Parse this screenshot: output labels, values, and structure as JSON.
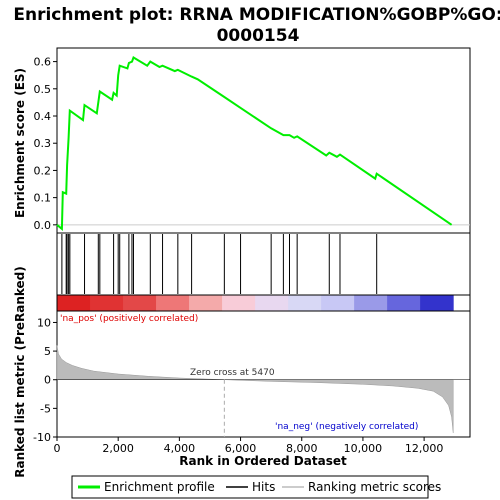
{
  "chart_data": {
    "type": "line",
    "title_line1": "Enrichment plot: RRNA MODIFICATION%GOBP%GO:",
    "title_line2": "0000154",
    "top_panel": {
      "ylabel": "Enrichment score (ES)",
      "ylim": [
        -0.03,
        0.65
      ],
      "yticks": [
        "0.0",
        "0.1",
        "0.2",
        "0.3",
        "0.4",
        "0.5",
        "0.6"
      ],
      "ytick_values": [
        0.0,
        0.1,
        0.2,
        0.3,
        0.4,
        0.5,
        0.6
      ],
      "line_color": "#00ee00",
      "es_profile": [
        [
          0,
          0.0
        ],
        [
          160,
          -0.015
        ],
        [
          190,
          0.12
        ],
        [
          300,
          0.115
        ],
        [
          330,
          0.22
        ],
        [
          380,
          0.32
        ],
        [
          420,
          0.42
        ],
        [
          850,
          0.385
        ],
        [
          900,
          0.44
        ],
        [
          1300,
          0.41
        ],
        [
          1350,
          0.45
        ],
        [
          1400,
          0.49
        ],
        [
          1800,
          0.46
        ],
        [
          1850,
          0.485
        ],
        [
          1950,
          0.475
        ],
        [
          2000,
          0.55
        ],
        [
          2050,
          0.585
        ],
        [
          2300,
          0.575
        ],
        [
          2350,
          0.595
        ],
        [
          2450,
          0.6
        ],
        [
          2500,
          0.615
        ],
        [
          2950,
          0.585
        ],
        [
          3050,
          0.6
        ],
        [
          3350,
          0.58
        ],
        [
          3450,
          0.585
        ],
        [
          3850,
          0.565
        ],
        [
          3950,
          0.57
        ],
        [
          4400,
          0.545
        ],
        [
          4600,
          0.535
        ],
        [
          5470,
          0.47
        ],
        [
          6000,
          0.43
        ],
        [
          7000,
          0.355
        ],
        [
          7400,
          0.33
        ],
        [
          7600,
          0.33
        ],
        [
          7750,
          0.32
        ],
        [
          7850,
          0.325
        ],
        [
          8800,
          0.255
        ],
        [
          8900,
          0.265
        ],
        [
          9150,
          0.25
        ],
        [
          9250,
          0.258
        ],
        [
          10400,
          0.17
        ],
        [
          10450,
          0.188
        ],
        [
          12900,
          0.0
        ]
      ]
    },
    "hits_panel": {
      "hit_positions": [
        160,
        300,
        330,
        380,
        420,
        900,
        1350,
        1400,
        1850,
        2000,
        2050,
        2350,
        2450,
        2500,
        3050,
        3450,
        3950,
        4400,
        5470,
        6000,
        7000,
        7400,
        7600,
        7850,
        8900,
        9250,
        10450
      ],
      "heatmap_colors": [
        "#dd2222",
        "#e03333",
        "#e34848",
        "#ee7777",
        "#f4aaaa",
        "#f8ccd8",
        "#e8d8f0",
        "#d8d8f5",
        "#c8c8f5",
        "#9a9ae8",
        "#6666dd",
        "#3333cc"
      ]
    },
    "bottom_panel": {
      "ylabel": "Ranked list metric (PreRanked)",
      "ylim": [
        -10,
        12
      ],
      "yticks": [
        "10",
        "5",
        "0",
        "-5",
        "-10"
      ],
      "ytick_values": [
        10,
        5,
        0,
        -5,
        -10
      ],
      "metric_points": [
        [
          0,
          6.0
        ],
        [
          50,
          4.5
        ],
        [
          150,
          3.6
        ],
        [
          300,
          3.0
        ],
        [
          500,
          2.5
        ],
        [
          800,
          2.0
        ],
        [
          1200,
          1.5
        ],
        [
          2000,
          1.0
        ],
        [
          3000,
          0.6
        ],
        [
          4000,
          0.3
        ],
        [
          5470,
          0.0
        ],
        [
          7000,
          -0.3
        ],
        [
          8500,
          -0.5
        ],
        [
          10000,
          -0.8
        ],
        [
          11000,
          -1.1
        ],
        [
          11800,
          -1.5
        ],
        [
          12300,
          -2.0
        ],
        [
          12600,
          -3.0
        ],
        [
          12800,
          -4.5
        ],
        [
          12900,
          -6.5
        ],
        [
          12950,
          -9.3
        ]
      ],
      "zero_cross_label": "Zero cross at 5470",
      "zero_cross": 5470,
      "pos_label": "'na_pos' (positively correlated)",
      "neg_label": "'na_neg' (negatively correlated)",
      "xlabel": "Rank in Ordered Dataset",
      "xlim": [
        0,
        13500
      ],
      "xticks": [
        "0",
        "2,000",
        "4,000",
        "6,000",
        "8,000",
        "10,000",
        "12,000"
      ],
      "xtick_values": [
        0,
        2000,
        4000,
        6000,
        8000,
        10000,
        12000
      ],
      "max_rank": 12950
    },
    "legend": {
      "items": [
        {
          "label": "Enrichment profile",
          "color": "#00ee00"
        },
        {
          "label": "Hits",
          "color": "#000000"
        },
        {
          "label": "Ranking metric scores",
          "color": "#bbbbbb"
        }
      ]
    }
  }
}
